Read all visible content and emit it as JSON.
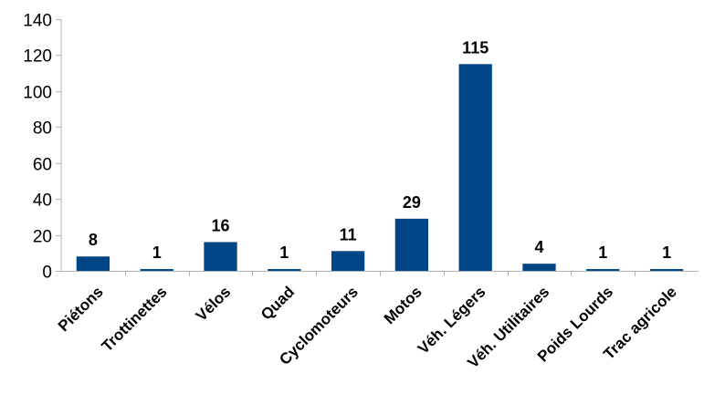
{
  "chart_data": {
    "type": "bar",
    "categories": [
      "Piétons",
      "Trottinettes",
      "Vélos",
      "Quad",
      "Cyclomoteurs",
      "Motos",
      "Véh. Légers",
      "Véh. Utilitaires",
      "Poids Lourds",
      "Trac agricole"
    ],
    "values": [
      8,
      1,
      16,
      1,
      11,
      29,
      115,
      4,
      1,
      1
    ],
    "ylim": [
      0,
      140
    ],
    "yticks": [
      0,
      20,
      40,
      60,
      80,
      100,
      120,
      140
    ],
    "grid": false,
    "bar_color": "#004586",
    "axis_color": "#b3b3b3"
  }
}
